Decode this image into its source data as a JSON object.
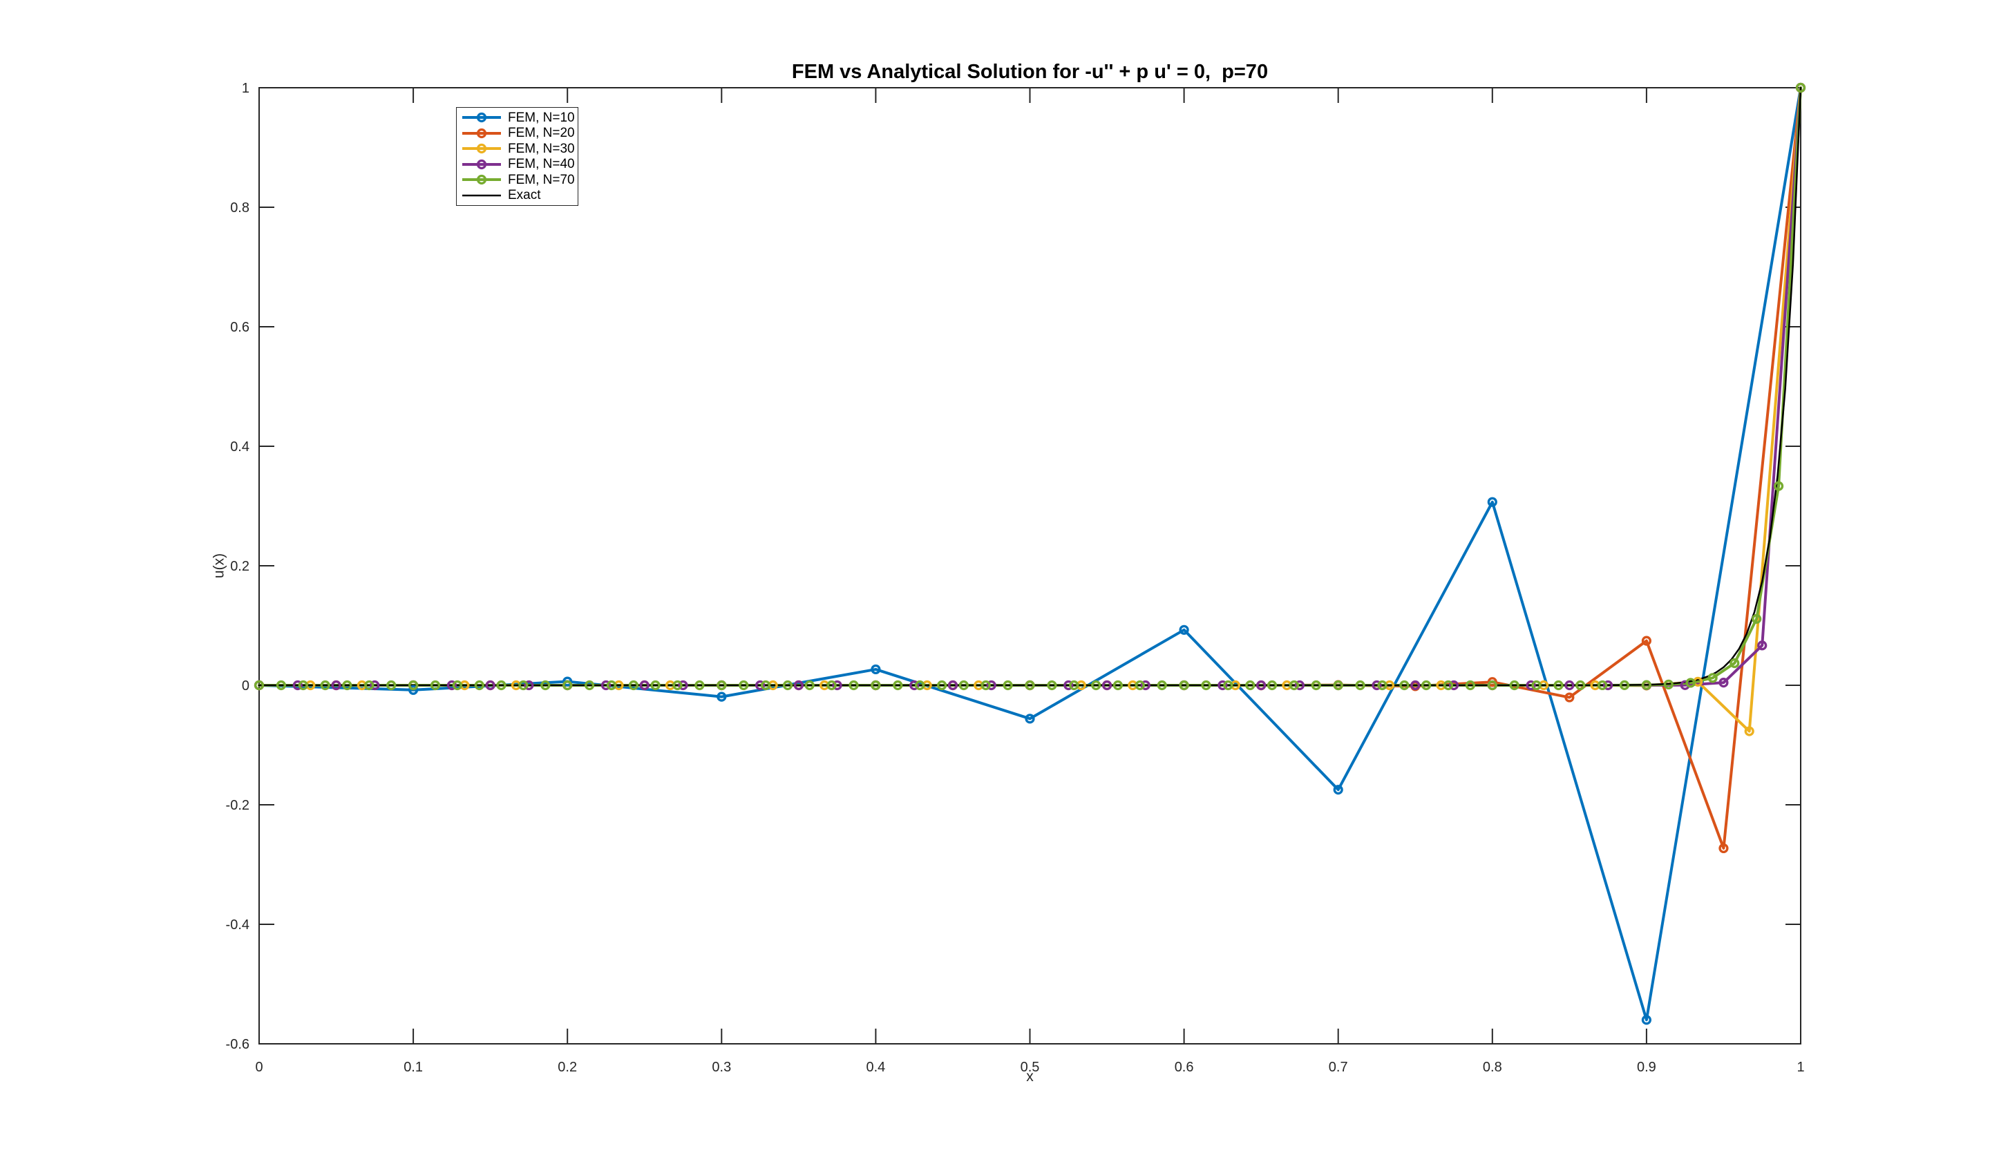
{
  "figure": {
    "background": "#ffffff"
  },
  "chart_data": {
    "type": "line",
    "title": "FEM vs Analytical Solution for -u'' + p u' = 0,  p=70",
    "xlabel": "x",
    "ylabel": "u(x)",
    "xlim": [
      0,
      1
    ],
    "ylim": [
      -0.6,
      1
    ],
    "xticks": [
      "0",
      "0.1",
      "0.2",
      "0.3",
      "0.4",
      "0.5",
      "0.6",
      "0.7",
      "0.8",
      "0.9",
      "1"
    ],
    "yticks": [
      "-0.6",
      "-0.4",
      "-0.2",
      "0",
      "0.2",
      "0.4",
      "0.6",
      "0.8",
      "1"
    ],
    "grid": false,
    "legend_position": "top-left-inside",
    "axis_color": "#262626",
    "background_color": "#ffffff",
    "series": [
      {
        "name": "FEM, N=10",
        "color": "#0072BD",
        "marker": "circle",
        "line_width": 4,
        "x": [
          0,
          0.1,
          0.2,
          0.3,
          0.4,
          0.5,
          0.6,
          0.7,
          0.8,
          0.9,
          1
        ],
        "y": [
          0,
          -0.007864,
          0.006291,
          -0.019189,
          0.026675,
          -0.05588,
          0.092719,
          -0.174758,
          0.3067,
          -0.559925,
          1
        ]
      },
      {
        "name": "FEM, N=20",
        "color": "#D95319",
        "marker": "circle",
        "line_width": 4,
        "x": [
          0,
          0.05,
          0.1,
          0.15,
          0.2,
          0.25,
          0.3,
          0.35,
          0.4,
          0.45,
          0.5,
          0.55,
          0.6,
          0.65,
          0.7,
          0.75,
          0.8,
          0.85,
          0.9,
          0.95,
          1
        ],
        "y": [
          0,
          0,
          0,
          0,
          0,
          0,
          0,
          0,
          0,
          0,
          2e-06,
          -8e-06,
          3.1e-05,
          -0.000112,
          0.000412,
          -0.001509,
          0.005533,
          -0.020287,
          0.074386,
          -0.272749,
          1
        ]
      },
      {
        "name": "FEM, N=30",
        "color": "#EDB120",
        "marker": "circle",
        "line_width": 4,
        "x": [
          0,
          0.0333,
          0.0667,
          0.1,
          0.1333,
          0.1667,
          0.2,
          0.2333,
          0.2667,
          0.3,
          0.3333,
          0.3667,
          0.4,
          0.4333,
          0.4667,
          0.5,
          0.5333,
          0.5667,
          0.6,
          0.6333,
          0.6667,
          0.7,
          0.7333,
          0.7667,
          0.8,
          0.8333,
          0.8667,
          0.9,
          0.9333,
          0.9667,
          1
        ],
        "y": [
          0,
          0,
          0,
          0,
          0,
          0,
          0,
          0,
          0,
          0,
          0,
          0,
          0,
          0,
          0,
          0,
          0,
          0,
          0,
          0,
          0,
          0,
          0,
          0,
          0,
          0,
          3.5e-05,
          -0.000455,
          0.005917,
          -0.076923,
          1
        ]
      },
      {
        "name": "FEM, N=40",
        "color": "#7E2F8E",
        "marker": "circle",
        "line_width": 4,
        "x": [
          0,
          0.025,
          0.05,
          0.075,
          0.1,
          0.125,
          0.15,
          0.175,
          0.2,
          0.225,
          0.25,
          0.275,
          0.3,
          0.325,
          0.35,
          0.375,
          0.4,
          0.425,
          0.45,
          0.475,
          0.5,
          0.525,
          0.55,
          0.575,
          0.6,
          0.625,
          0.65,
          0.675,
          0.7,
          0.725,
          0.75,
          0.775,
          0.8,
          0.825,
          0.85,
          0.875,
          0.9,
          0.925,
          0.95,
          0.975,
          1
        ],
        "y": [
          0,
          0,
          0,
          0,
          0,
          0,
          0,
          0,
          0,
          0,
          0,
          0,
          0,
          0,
          0,
          0,
          0,
          0,
          0,
          0,
          0,
          0,
          0,
          0,
          0,
          0,
          0,
          0,
          0,
          0,
          0,
          0,
          0,
          0,
          0,
          0,
          2e-05,
          0.000296,
          0.004444,
          0.066667,
          1
        ]
      },
      {
        "name": "FEM, N=70",
        "color": "#77AC30",
        "marker": "circle",
        "line_width": 4,
        "x": [
          0,
          0.0143,
          0.0286,
          0.0429,
          0.0571,
          0.0714,
          0.0857,
          0.1,
          0.1143,
          0.1286,
          0.1429,
          0.1571,
          0.1714,
          0.1857,
          0.2,
          0.2143,
          0.2286,
          0.2429,
          0.2571,
          0.2714,
          0.2857,
          0.3,
          0.3143,
          0.3286,
          0.3429,
          0.3571,
          0.3714,
          0.3857,
          0.4,
          0.4143,
          0.4286,
          0.4429,
          0.4571,
          0.4714,
          0.4857,
          0.5,
          0.5143,
          0.5286,
          0.5429,
          0.5571,
          0.5714,
          0.5857,
          0.6,
          0.6143,
          0.6286,
          0.6429,
          0.6571,
          0.6714,
          0.6857,
          0.7,
          0.7143,
          0.7286,
          0.7429,
          0.7571,
          0.7714,
          0.7857,
          0.8,
          0.8143,
          0.8286,
          0.8429,
          0.8571,
          0.8714,
          0.8857,
          0.9,
          0.9143,
          0.9286,
          0.9429,
          0.9571,
          0.9714,
          0.9857,
          1
        ],
        "y": [
          0,
          0,
          0,
          0,
          0,
          0,
          0,
          0,
          0,
          0,
          0,
          0,
          0,
          0,
          0,
          0,
          0,
          0,
          0,
          0,
          0,
          0,
          0,
          0,
          0,
          0,
          0,
          0,
          0,
          0,
          0,
          0,
          0,
          0,
          0,
          0,
          0,
          0,
          0,
          0,
          0,
          0,
          0,
          0,
          0,
          0,
          0,
          0,
          0,
          0,
          0,
          0,
          0,
          0,
          0,
          0,
          0,
          0,
          2e-06,
          6e-06,
          1.7e-05,
          5.1e-05,
          0.000152,
          0.000457,
          0.001372,
          0.004115,
          0.012346,
          0.037037,
          0.111111,
          0.333333,
          1
        ]
      },
      {
        "name": "Exact",
        "color": "#000000",
        "marker": "none",
        "line_width": 2.5,
        "x": [
          0,
          0.05,
          0.1,
          0.15,
          0.2,
          0.25,
          0.3,
          0.35,
          0.4,
          0.45,
          0.5,
          0.55,
          0.6,
          0.65,
          0.7,
          0.75,
          0.8,
          0.82,
          0.84,
          0.86,
          0.88,
          0.9,
          0.905,
          0.91,
          0.915,
          0.92,
          0.925,
          0.93,
          0.935,
          0.94,
          0.945,
          0.95,
          0.955,
          0.96,
          0.965,
          0.97,
          0.975,
          0.98,
          0.985,
          0.99,
          0.995,
          1
        ],
        "y": [
          0,
          0,
          0,
          0,
          0,
          0,
          0,
          0,
          0,
          0,
          0,
          0,
          0,
          0,
          0,
          0,
          1e-06,
          3e-06,
          1.4e-05,
          5.5e-05,
          0.000225,
          0.000912,
          0.001292,
          0.001836,
          0.002606,
          0.003698,
          0.005248,
          0.007447,
          0.010567,
          0.014996,
          0.02128,
          0.030197,
          0.042852,
          0.06081,
          0.086294,
          0.122456,
          0.173774,
          0.246597,
          0.349938,
          0.496585,
          0.704688,
          1
        ]
      }
    ]
  }
}
